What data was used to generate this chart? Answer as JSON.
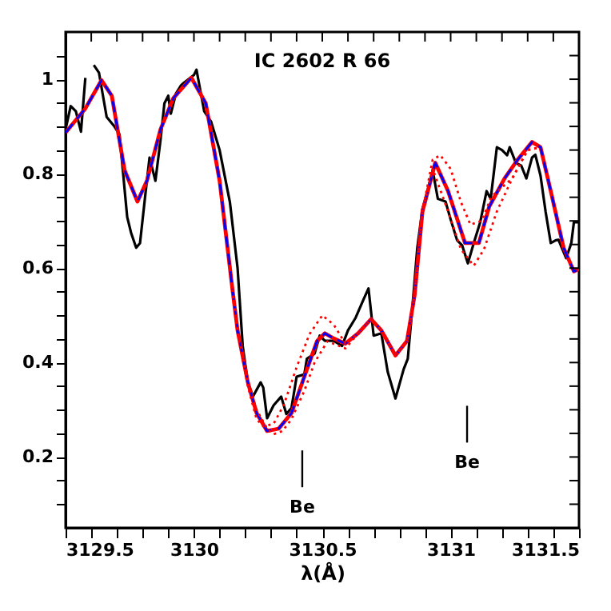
{
  "chart_data": {
    "type": "line",
    "title": "IC 2602 R 66",
    "xlabel": "λ(Å)",
    "xlim": [
      3129.5,
      3131.5
    ],
    "xticks": [
      3129.5,
      {
        "value": 3129.6,
        "label": null
      },
      {
        "value": 3129.7,
        "label": null
      },
      {
        "value": 3129.8,
        "label": null
      },
      {
        "value": 3129.9,
        "label": null
      },
      3130,
      {
        "value": 3130.1,
        "label": null
      },
      {
        "value": 3130.2,
        "label": null
      },
      {
        "value": 3130.3,
        "label": null
      },
      {
        "value": 3130.4,
        "label": null
      },
      3130.5,
      {
        "value": 3130.6,
        "label": null
      },
      {
        "value": 3130.7,
        "label": null
      },
      {
        "value": 3130.8,
        "label": null
      },
      {
        "value": 3130.9,
        "label": null
      },
      3131,
      {
        "value": 3131.1,
        "label": null
      },
      {
        "value": 3131.2,
        "label": null
      },
      {
        "value": 3131.3,
        "label": null
      },
      {
        "value": 3131.4,
        "label": null
      },
      3131.5
    ],
    "ylim": [
      0.05,
      1.1
    ],
    "yticks": [
      {
        "value": 0.1,
        "label": null
      },
      {
        "value": 0.15,
        "label": null
      },
      0.2,
      {
        "value": 0.25,
        "label": null
      },
      {
        "value": 0.3,
        "label": null
      },
      {
        "value": 0.35,
        "label": null
      },
      0.4,
      {
        "value": 0.45,
        "label": null
      },
      {
        "value": 0.5,
        "label": null
      },
      {
        "value": 0.55,
        "label": null
      },
      0.6,
      {
        "value": 0.65,
        "label": null
      },
      {
        "value": 0.7,
        "label": null
      },
      {
        "value": 0.75,
        "label": null
      },
      0.8,
      {
        "value": 0.85,
        "label": null
      },
      {
        "value": 0.9,
        "label": null
      },
      {
        "value": 0.95,
        "label": null
      },
      1,
      {
        "value": 1.05,
        "label": null
      }
    ],
    "grid": false,
    "marker": "none",
    "annotations": [
      "Be",
      "Be"
    ],
    "series": [
      {
        "color": "#000000",
        "line_style": "solid",
        "x": [
          3129.5,
          3129.52,
          3129.54,
          3129.56,
          3129.577,
          3129.59,
          3129.6,
          3129.61,
          3129.63,
          3129.66,
          3129.69,
          3129.71,
          3129.74,
          3129.755,
          3129.775,
          3129.79,
          3129.81,
          3129.827,
          3129.85,
          3129.87,
          3129.885,
          3129.9,
          3129.91,
          3129.93,
          3129.95,
          3129.96,
          3130.0,
          3130.01,
          3130.025,
          3130.04,
          3130.067,
          3130.1,
          3130.14,
          3130.17,
          3130.19,
          3130.21,
          3130.23,
          3130.26,
          3130.27,
          3130.285,
          3130.31,
          3130.34,
          3130.36,
          3130.38,
          3130.4,
          3130.43,
          3130.44,
          3130.47,
          3130.49,
          3130.51,
          3130.545,
          3130.577,
          3130.6,
          3130.63,
          3130.66,
          3130.68,
          3130.7,
          3130.73,
          3130.755,
          3130.785,
          3130.817,
          3130.833,
          3130.85,
          3130.87,
          3130.89,
          3130.91,
          3130.93,
          3130.95,
          3130.98,
          3131.0,
          3131.025,
          3131.045,
          3131.067,
          3131.09,
          3131.115,
          3131.14,
          3131.156,
          3131.18,
          3131.2,
          3131.22,
          3131.23,
          3131.254,
          3131.275,
          3131.295,
          3131.317,
          3131.33,
          3131.35,
          3131.37,
          3131.39,
          3131.41,
          3131.42,
          3131.45,
          3131.47,
          3131.48,
          3131.5
        ],
        "values": [
          0.894,
          0.943,
          0.932,
          0.889,
          1.003,
          null,
          null,
          1.03,
          1.014,
          0.92,
          0.9,
          0.883,
          0.708,
          0.675,
          0.643,
          0.653,
          0.752,
          0.834,
          0.785,
          0.872,
          0.949,
          0.965,
          0.927,
          0.97,
          0.987,
          0.992,
          1.009,
          1.02,
          0.976,
          0.932,
          0.91,
          0.85,
          0.74,
          0.6,
          0.435,
          0.358,
          0.328,
          0.358,
          0.347,
          0.282,
          0.309,
          0.328,
          0.291,
          0.304,
          0.37,
          0.375,
          0.408,
          0.419,
          0.457,
          0.446,
          0.446,
          0.435,
          0.468,
          0.495,
          0.533,
          0.557,
          0.457,
          0.462,
          0.38,
          0.324,
          0.386,
          0.408,
          0.511,
          0.643,
          0.725,
          0.763,
          0.807,
          0.747,
          0.741,
          0.703,
          0.659,
          0.648,
          0.61,
          0.653,
          0.697,
          0.763,
          0.747,
          0.856,
          0.85,
          0.839,
          0.856,
          0.823,
          0.817,
          0.79,
          0.834,
          0.84,
          0.796,
          0.719,
          0.653,
          0.659,
          0.66,
          0.621,
          0.653,
          0.697,
          0.697
        ]
      },
      {
        "color": "#ff0000",
        "line_style": "solid",
        "x": [
          3129.5,
          3129.577,
          3129.64,
          3129.68,
          3129.73,
          3129.78,
          3129.817,
          3129.87,
          3129.92,
          3129.99,
          3130.046,
          3130.1,
          3130.15,
          3130.17,
          3130.21,
          3130.244,
          3130.285,
          3130.33,
          3130.38,
          3130.43,
          3130.48,
          3130.51,
          3130.545,
          3130.59,
          3130.64,
          3130.69,
          3130.73,
          3130.785,
          3130.83,
          3130.86,
          3130.89,
          3130.94,
          3130.99,
          3131.056,
          3131.11,
          3131.15,
          3131.21,
          3131.26,
          3131.317,
          3131.35,
          3131.39,
          3131.44,
          3131.48,
          3131.5
        ],
        "values": [
          0.887,
          0.938,
          0.998,
          0.965,
          0.807,
          0.741,
          0.785,
          0.894,
          0.96,
          1.003,
          0.949,
          0.785,
          0.555,
          0.468,
          0.358,
          0.293,
          0.255,
          0.26,
          0.293,
          0.37,
          0.446,
          0.462,
          0.451,
          0.44,
          0.462,
          0.492,
          0.468,
          0.415,
          0.446,
          0.544,
          0.719,
          0.823,
          0.763,
          0.653,
          0.653,
          0.73,
          0.79,
          0.829,
          0.867,
          0.856,
          0.763,
          0.643,
          0.593,
          0.598
        ]
      },
      {
        "color": "#0000ff",
        "line_style": "dashed",
        "x": [
          3129.5,
          3129.577,
          3129.64,
          3129.68,
          3129.73,
          3129.78,
          3129.817,
          3129.87,
          3129.92,
          3129.99,
          3130.046,
          3130.1,
          3130.15,
          3130.17,
          3130.21,
          3130.244,
          3130.285,
          3130.33,
          3130.38,
          3130.43,
          3130.48,
          3130.51,
          3130.545,
          3130.59,
          3130.64,
          3130.69,
          3130.73,
          3130.785,
          3130.83,
          3130.86,
          3130.89,
          3130.94,
          3130.99,
          3131.056,
          3131.11,
          3131.15,
          3131.21,
          3131.26,
          3131.317,
          3131.35,
          3131.39,
          3131.44,
          3131.48,
          3131.5
        ],
        "values": [
          0.887,
          0.938,
          0.998,
          0.965,
          0.807,
          0.741,
          0.785,
          0.894,
          0.96,
          1.003,
          0.949,
          0.785,
          0.555,
          0.468,
          0.358,
          0.293,
          0.255,
          0.26,
          0.293,
          0.37,
          0.446,
          0.462,
          0.451,
          0.44,
          0.462,
          0.492,
          0.468,
          0.415,
          0.446,
          0.544,
          0.719,
          0.823,
          0.763,
          0.653,
          0.653,
          0.73,
          0.79,
          0.829,
          0.867,
          0.856,
          0.763,
          0.643,
          0.593,
          0.598
        ]
      },
      {
        "color": "#ff0000",
        "line_style": "dotted",
        "x": [
          3130.15,
          3130.17,
          3130.21,
          3130.244,
          3130.285,
          3130.31,
          3130.345,
          3130.38,
          3130.43,
          3130.47,
          3130.52,
          3130.59,
          3130.64,
          3130.69,
          3130.73,
          3130.785,
          3130.83,
          3130.86,
          3130.89,
          3130.93,
          3130.99,
          3131.04,
          3131.09,
          3131.13,
          3131.18,
          3131.24,
          3131.3,
          3131.35
        ],
        "values": [
          0.555,
          0.468,
          0.358,
          0.3,
          0.26,
          0.248,
          0.255,
          0.28,
          0.34,
          0.4,
          0.445,
          0.43,
          0.462,
          0.492,
          0.468,
          0.415,
          0.446,
          0.544,
          0.719,
          0.81,
          0.72,
          0.64,
          0.605,
          0.64,
          0.72,
          0.79,
          0.85,
          0.856
        ]
      },
      {
        "color": "#ff0000",
        "line_style": "dotted",
        "x": [
          3130.15,
          3130.17,
          3130.21,
          3130.244,
          3130.27,
          3130.31,
          3130.35,
          3130.4,
          3130.45,
          3130.5,
          3130.545,
          3130.59,
          3130.64,
          3130.69,
          3130.73,
          3130.785,
          3130.83,
          3130.86,
          3130.89,
          3130.93,
          3130.96,
          3131.0,
          3131.04,
          3131.077,
          3131.12,
          3131.16,
          3131.24,
          3131.3,
          3131.35
        ],
        "values": [
          0.555,
          0.468,
          0.35,
          0.28,
          0.265,
          0.27,
          0.31,
          0.39,
          0.46,
          0.5,
          0.48,
          0.44,
          0.462,
          0.492,
          0.468,
          0.415,
          0.446,
          0.544,
          0.719,
          0.83,
          0.839,
          0.81,
          0.74,
          0.692,
          0.7,
          0.752,
          0.79,
          0.85,
          0.856
        ]
      }
    ]
  }
}
